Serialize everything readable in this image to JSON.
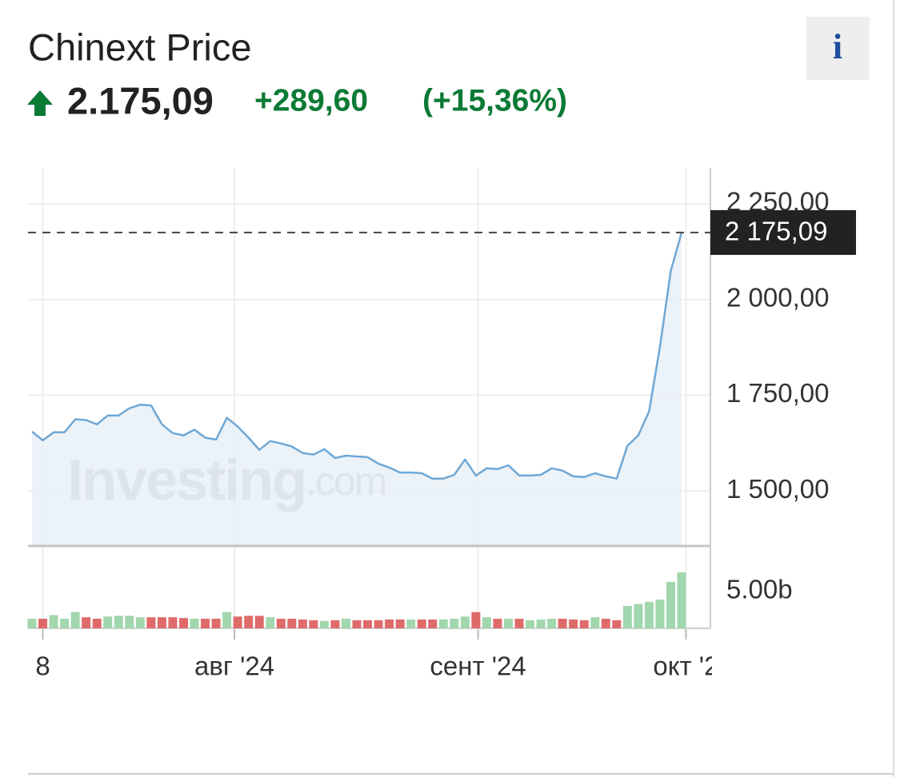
{
  "header": {
    "title": "Chinext Price",
    "price": "2.175,09",
    "change": "+289,60",
    "change_pct": "(+15,36%)",
    "info": "i"
  },
  "chart_data": {
    "type": "line",
    "color": "#6fa8d6",
    "area_color": "#e4edf6",
    "watermark": {
      "brand": "Investing",
      "domain": ".com"
    },
    "values": [
      1655,
      1632,
      1653,
      1653,
      1687,
      1685,
      1674,
      1697,
      1697,
      1716,
      1725,
      1723,
      1674,
      1651,
      1645,
      1660,
      1639,
      1634,
      1691,
      1668,
      1639,
      1607,
      1630,
      1624,
      1616,
      1599,
      1595,
      1609,
      1586,
      1592,
      1590,
      1588,
      1571,
      1561,
      1548,
      1548,
      1546,
      1532,
      1532,
      1542,
      1582,
      1540,
      1559,
      1557,
      1567,
      1540,
      1540,
      1542,
      1559,
      1553,
      1538,
      1536,
      1546,
      1538,
      1532,
      1618,
      1645,
      1708,
      1876,
      2075,
      2175.09
    ],
    "xlim": [
      0,
      60
    ],
    "xticks": [
      {
        "value": 1,
        "label": "8"
      },
      {
        "value": 18.7,
        "label": "авг '24"
      },
      {
        "value": 41.2,
        "label": "сент '24"
      },
      {
        "value": 60.4,
        "label": "окт '2"
      }
    ],
    "ylim": [
      1356,
      2344
    ],
    "yticks": [
      {
        "value": 1500,
        "label": "1 500,00"
      },
      {
        "value": 1750,
        "label": "1 750,00"
      },
      {
        "value": 2000,
        "label": "2 000,00"
      },
      {
        "value": 2250,
        "label": "2 250,00"
      }
    ],
    "grid": true,
    "price_tag": {
      "value": 2175.09,
      "label": "2 175,09"
    },
    "volume": {
      "values": [
        1.3,
        1.3,
        1.8,
        1.3,
        2.2,
        1.5,
        1.3,
        1.6,
        1.7,
        1.7,
        1.5,
        1.5,
        1.5,
        1.5,
        1.4,
        1.3,
        1.3,
        1.3,
        2.2,
        1.6,
        1.7,
        1.7,
        1.5,
        1.3,
        1.3,
        1.2,
        1.1,
        1.0,
        1.1,
        1.3,
        1.1,
        1.1,
        1.1,
        1.2,
        1.2,
        1.2,
        1.2,
        1.2,
        1.2,
        1.3,
        1.6,
        2.2,
        1.5,
        1.3,
        1.3,
        1.3,
        1.1,
        1.2,
        1.3,
        1.3,
        1.2,
        1.1,
        1.5,
        1.3,
        1.1,
        3.05,
        3.3,
        3.6,
        3.9,
        6.3,
        7.6
      ],
      "ylim": [
        0,
        10.1
      ],
      "yticks": [
        {
          "value": 5,
          "label": "5.00b"
        }
      ],
      "up_color": "#a2d6ad",
      "down_color": "#df6a6a"
    }
  }
}
